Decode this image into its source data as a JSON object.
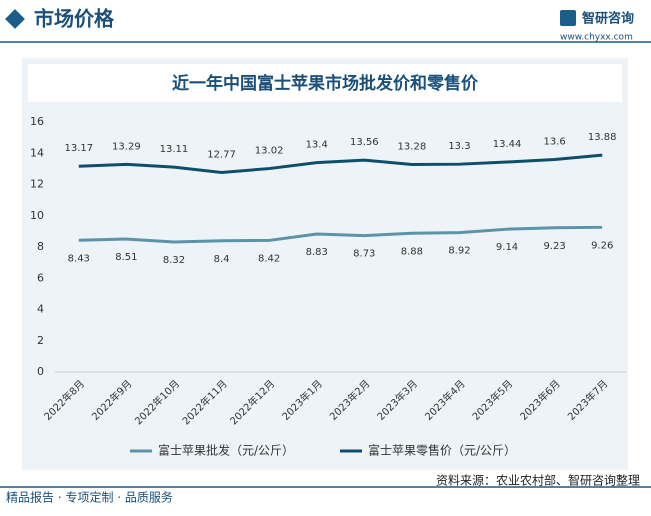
{
  "header": {
    "title": "市场价格",
    "brand": "智研咨询",
    "url": "www.chyxx.com"
  },
  "footer": {
    "slogan": "精品报告 · 专项定制 · 品质服务",
    "source": "资料来源：农业农村部、智研咨询整理"
  },
  "chart_data": {
    "type": "line",
    "title": "近一年中国富士苹果市场批发价和零售价",
    "categories": [
      "2022年8月",
      "2022年9月",
      "2022年10月",
      "2022年11月",
      "2022年12月",
      "2023年1月",
      "2023年2月",
      "2023年3月",
      "2023年4月",
      "2023年5月",
      "2023年6月",
      "2023年7月"
    ],
    "series": [
      {
        "name": "富士苹果批发（元/公斤）",
        "color": "#5b93a8",
        "label_side": "below",
        "values": [
          8.43,
          8.51,
          8.32,
          8.4,
          8.42,
          8.83,
          8.73,
          8.88,
          8.92,
          9.14,
          9.23,
          9.26
        ]
      },
      {
        "name": "富士苹果零售价（元/公斤）",
        "color": "#0d4f6b",
        "label_side": "above",
        "values": [
          13.17,
          13.29,
          13.11,
          12.77,
          13.02,
          13.4,
          13.56,
          13.28,
          13.3,
          13.44,
          13.6,
          13.88
        ]
      }
    ],
    "ylim": [
      0,
      16
    ],
    "yticks": [
      0,
      2,
      4,
      6,
      8,
      10,
      12,
      14,
      16
    ],
    "grid": false,
    "legend": "bottom"
  }
}
